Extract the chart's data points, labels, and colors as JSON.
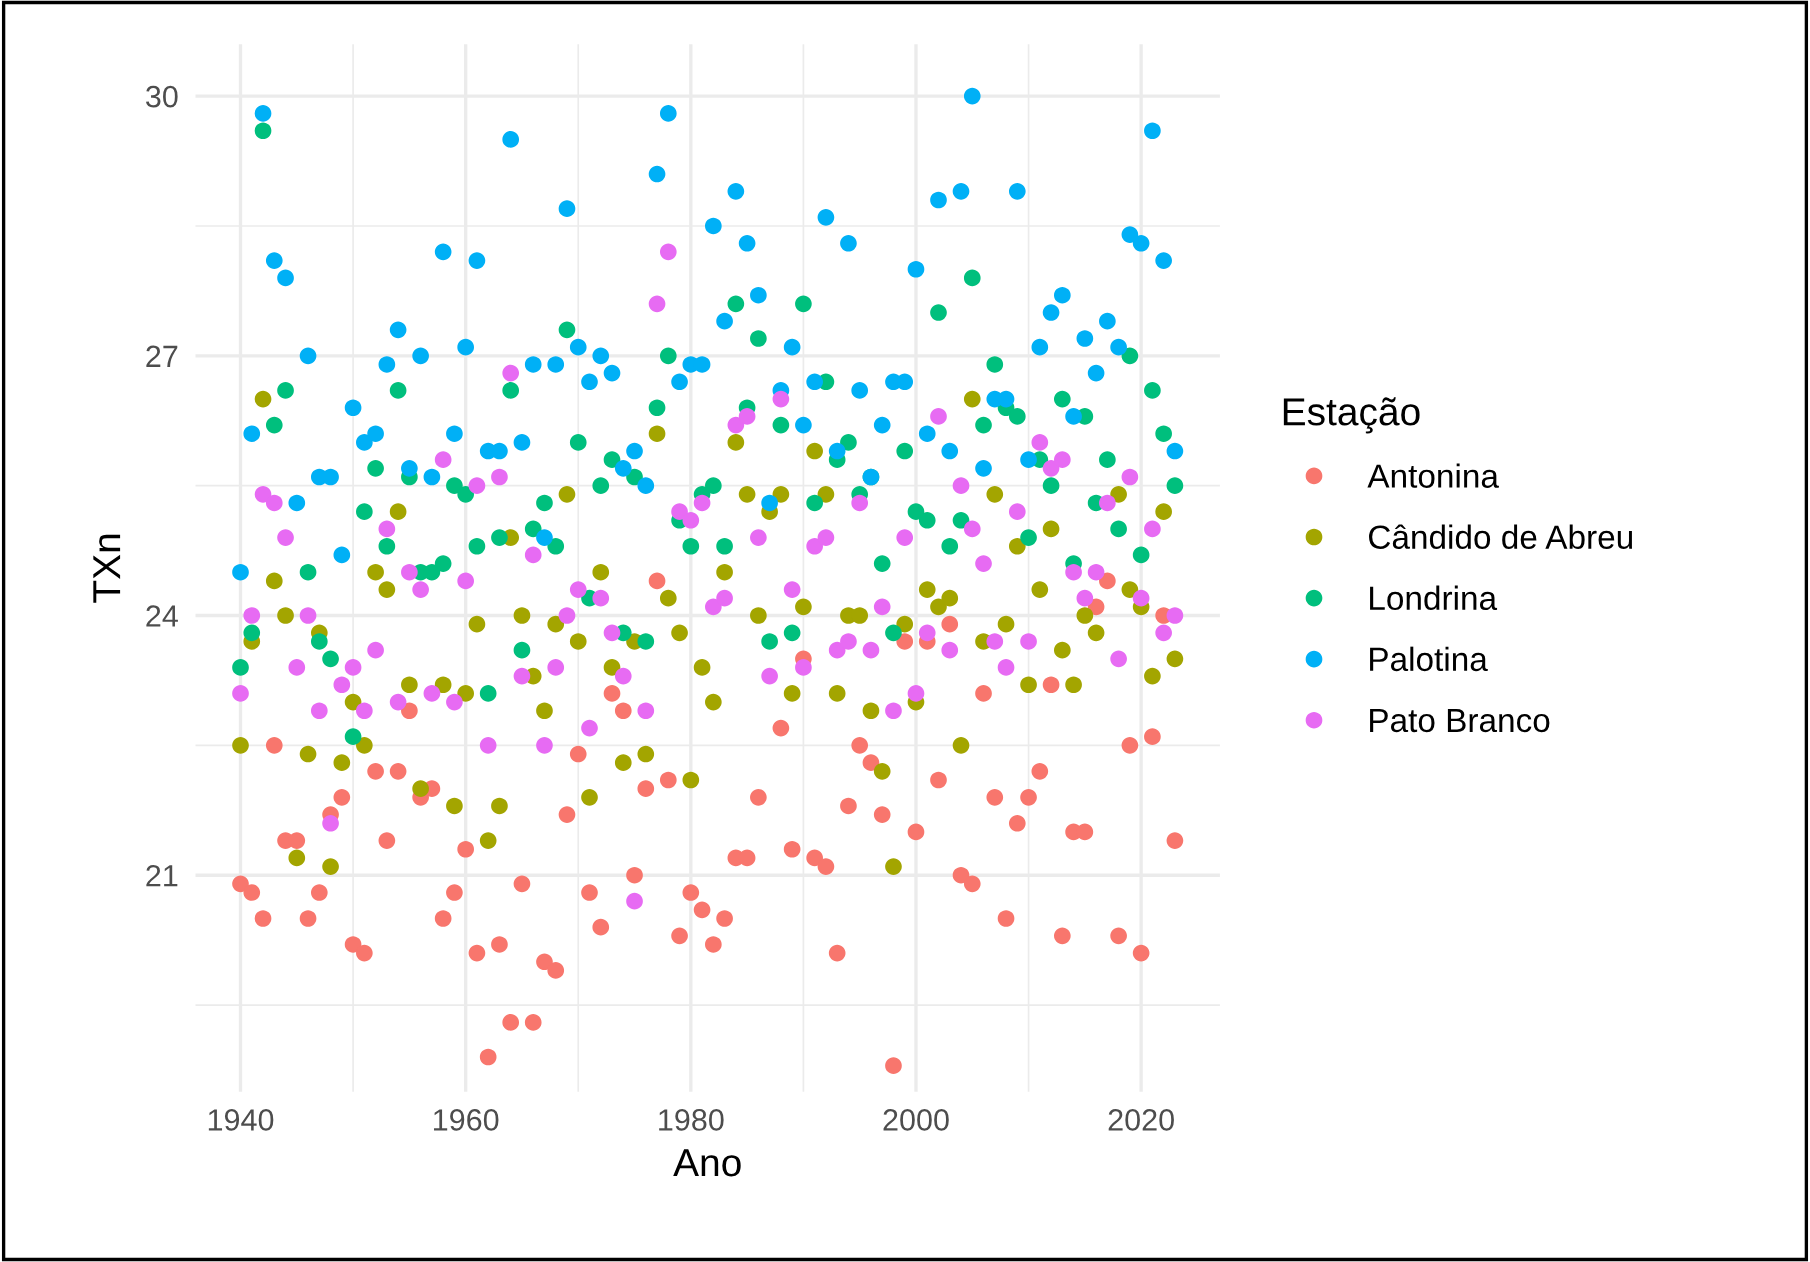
{
  "chart_data": {
    "type": "scatter",
    "xlabel": "Ano",
    "ylabel": "TXn",
    "legend_title": "Estação",
    "legend": "right",
    "grid": true,
    "marker": "circle",
    "x": [
      1940,
      1941,
      1942,
      1943,
      1944,
      1945,
      1946,
      1947,
      1948,
      1949,
      1950,
      1951,
      1952,
      1953,
      1954,
      1955,
      1956,
      1957,
      1958,
      1959,
      1960,
      1961,
      1962,
      1963,
      1964,
      1965,
      1966,
      1967,
      1968,
      1969,
      1970,
      1971,
      1972,
      1973,
      1974,
      1975,
      1976,
      1977,
      1978,
      1979,
      1980,
      1981,
      1982,
      1983,
      1984,
      1985,
      1986,
      1987,
      1988,
      1989,
      1990,
      1991,
      1992,
      1993,
      1994,
      1995,
      1996,
      1997,
      1998,
      1999,
      2000,
      2001,
      2002,
      2003,
      2004,
      2005,
      2006,
      2007,
      2008,
      2009,
      2010,
      2011,
      2012,
      2013,
      2014,
      2015,
      2016,
      2017,
      2018,
      2019,
      2020,
      2021,
      2022,
      2023
    ],
    "xlim": [
      1936,
      2027
    ],
    "xticks": [
      1940,
      1960,
      1980,
      2000,
      2020
    ],
    "ylim": [
      18.5,
      30.6
    ],
    "yticks": [
      21,
      24,
      27,
      30
    ],
    "series": [
      {
        "name": "Antonina",
        "color": "#f8766d",
        "values": [
          20.9,
          20.8,
          20.5,
          22.5,
          21.4,
          21.4,
          20.5,
          20.8,
          21.7,
          21.9,
          20.2,
          20.1,
          22.2,
          21.4,
          22.2,
          22.9,
          21.9,
          22.0,
          20.5,
          20.8,
          21.3,
          20.1,
          18.9,
          20.2,
          19.3,
          20.9,
          19.3,
          20.0,
          19.9,
          21.7,
          22.4,
          20.8,
          20.4,
          23.1,
          22.9,
          21.0,
          22.0,
          24.4,
          22.1,
          20.3,
          20.8,
          20.6,
          20.2,
          20.5,
          21.2,
          21.2,
          21.9,
          null,
          22.7,
          21.3,
          23.5,
          21.2,
          21.1,
          20.1,
          21.8,
          22.5,
          22.3,
          21.7,
          18.8,
          23.7,
          21.5,
          23.7,
          22.1,
          23.9,
          21.0,
          20.9,
          23.1,
          21.9,
          20.5,
          21.6,
          21.9,
          22.2,
          23.2,
          20.3,
          21.5,
          21.5,
          24.1,
          24.4,
          20.3,
          22.5,
          20.1,
          22.6,
          24.0,
          21.4
        ]
      },
      {
        "name": "Cândido de Abreu",
        "color": "#a3a500",
        "values": [
          22.5,
          23.7,
          26.5,
          24.4,
          24.0,
          21.2,
          22.4,
          23.8,
          21.1,
          22.3,
          23.0,
          22.5,
          24.5,
          24.3,
          25.2,
          23.2,
          22.0,
          null,
          23.2,
          21.8,
          23.1,
          23.9,
          21.4,
          21.8,
          24.9,
          24.0,
          23.3,
          22.9,
          23.9,
          25.4,
          23.7,
          21.9,
          24.5,
          23.4,
          22.3,
          23.7,
          22.4,
          26.1,
          24.2,
          23.8,
          22.1,
          23.4,
          23.0,
          24.5,
          26.0,
          25.4,
          24.0,
          25.2,
          25.4,
          23.1,
          24.1,
          25.9,
          25.4,
          23.1,
          24.0,
          24.0,
          22.9,
          22.2,
          21.1,
          23.9,
          23.0,
          24.3,
          24.1,
          24.2,
          22.5,
          26.5,
          23.7,
          25.4,
          23.9,
          24.8,
          23.2,
          24.3,
          25.0,
          23.6,
          23.2,
          24.0,
          23.8,
          null,
          25.4,
          24.3,
          24.1,
          23.3,
          25.2,
          23.5
        ]
      },
      {
        "name": "Londrina",
        "color": "#00bf7d",
        "values": [
          23.4,
          23.8,
          29.6,
          26.2,
          26.6,
          null,
          24.5,
          23.7,
          23.5,
          null,
          22.6,
          25.2,
          25.7,
          24.8,
          26.6,
          25.6,
          24.5,
          24.5,
          24.6,
          25.5,
          25.4,
          24.8,
          23.1,
          24.9,
          26.6,
          23.6,
          25.0,
          25.3,
          24.8,
          27.3,
          26.0,
          24.2,
          25.5,
          25.8,
          23.8,
          25.6,
          23.7,
          26.4,
          27.0,
          25.1,
          24.8,
          25.4,
          25.5,
          24.8,
          27.6,
          26.4,
          27.2,
          23.7,
          26.2,
          23.8,
          27.6,
          25.3,
          26.7,
          25.8,
          26.0,
          25.4,
          25.6,
          24.6,
          23.8,
          25.9,
          25.2,
          25.1,
          27.5,
          24.8,
          25.1,
          27.9,
          26.2,
          26.9,
          26.4,
          26.3,
          24.9,
          25.8,
          25.5,
          26.5,
          24.6,
          26.3,
          25.3,
          25.8,
          25.0,
          27.0,
          24.7,
          26.6,
          26.1,
          25.5
        ]
      },
      {
        "name": "Palotina",
        "color": "#00b0f6",
        "values": [
          24.5,
          26.1,
          29.8,
          28.1,
          27.9,
          25.3,
          27.0,
          25.6,
          25.6,
          24.7,
          26.4,
          26.0,
          26.1,
          26.9,
          27.3,
          25.7,
          27.0,
          25.6,
          28.2,
          26.1,
          27.1,
          28.1,
          25.9,
          25.9,
          29.5,
          26.0,
          26.9,
          24.9,
          26.9,
          28.7,
          27.1,
          26.7,
          27.0,
          26.8,
          25.7,
          25.9,
          25.5,
          29.1,
          29.8,
          26.7,
          26.9,
          26.9,
          28.5,
          27.4,
          28.9,
          28.3,
          27.7,
          25.3,
          26.6,
          27.1,
          26.2,
          26.7,
          28.6,
          25.9,
          28.3,
          26.6,
          25.6,
          26.2,
          26.7,
          26.7,
          28.0,
          26.1,
          28.8,
          25.9,
          28.9,
          30.0,
          25.7,
          26.5,
          26.5,
          28.9,
          25.8,
          27.1,
          27.5,
          27.7,
          26.3,
          27.2,
          26.8,
          27.4,
          27.1,
          28.4,
          28.3,
          29.6,
          28.1,
          25.9
        ]
      },
      {
        "name": "Pato Branco",
        "color": "#e76bf3",
        "values": [
          23.1,
          24.0,
          25.4,
          25.3,
          24.9,
          23.4,
          24.0,
          22.9,
          21.6,
          23.2,
          23.4,
          22.9,
          23.6,
          25.0,
          23.0,
          24.5,
          24.3,
          23.1,
          25.8,
          23.0,
          24.4,
          25.5,
          22.5,
          25.6,
          26.8,
          23.3,
          24.7,
          22.5,
          23.4,
          24.0,
          24.3,
          22.7,
          24.2,
          23.8,
          23.3,
          20.7,
          22.9,
          27.6,
          28.2,
          25.2,
          25.1,
          25.3,
          24.1,
          24.2,
          26.2,
          26.3,
          24.9,
          23.3,
          26.5,
          24.3,
          23.4,
          24.8,
          24.9,
          23.6,
          23.7,
          25.3,
          23.6,
          24.1,
          22.9,
          24.9,
          23.1,
          23.8,
          26.3,
          23.6,
          25.5,
          25.0,
          24.6,
          23.7,
          23.4,
          25.2,
          23.7,
          26.0,
          25.7,
          25.8,
          24.5,
          24.2,
          24.5,
          25.3,
          23.5,
          25.6,
          24.2,
          25.0,
          23.8,
          24.0
        ]
      }
    ]
  }
}
